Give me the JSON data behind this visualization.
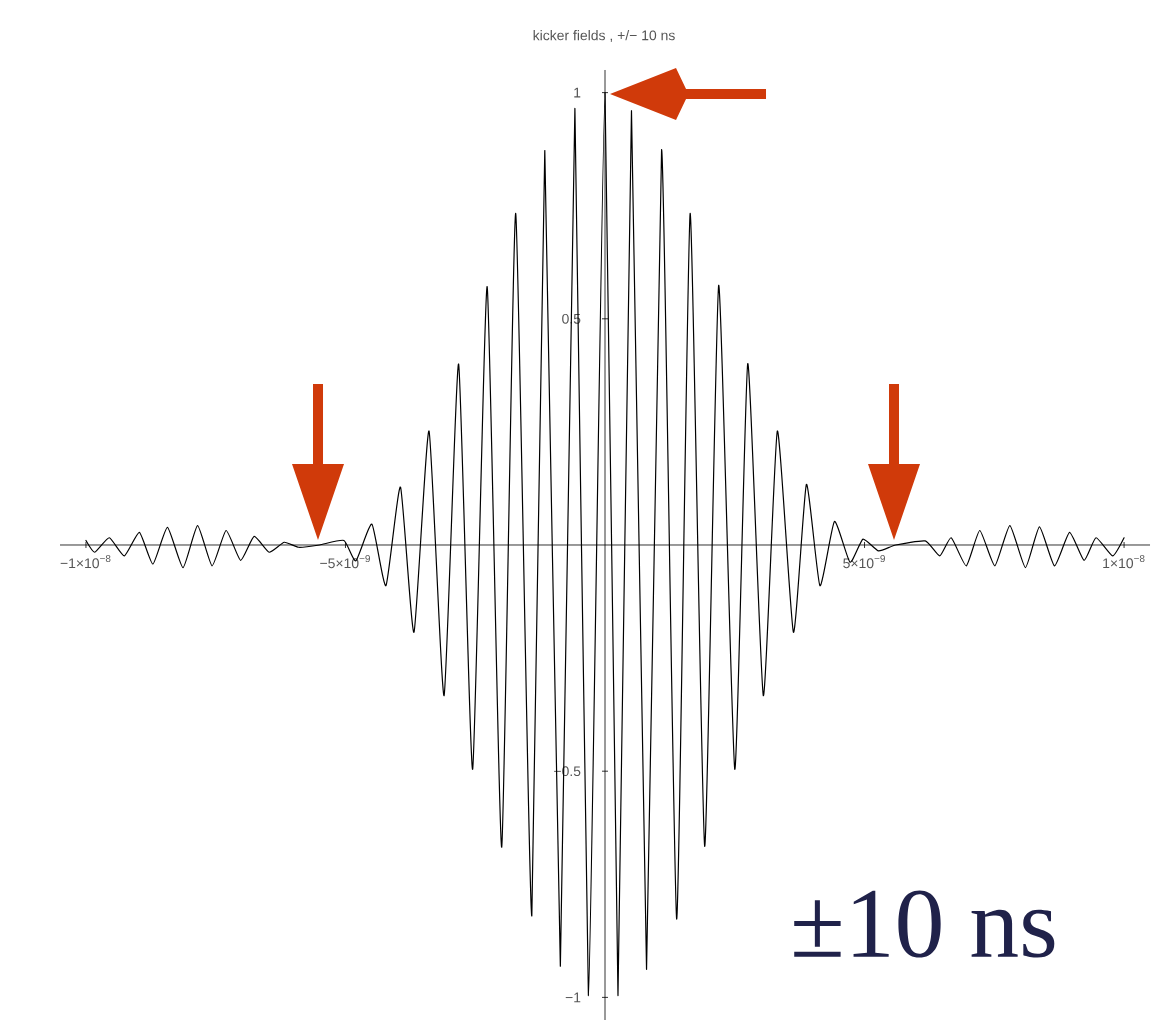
{
  "chart_data": {
    "type": "line",
    "title": "kicker fields , +/− 10 ns",
    "x": [
      -1e-08,
      -9.83e-09,
      -9.55e-09,
      -9.26e-09,
      -8.97e-09,
      -8.71e-09,
      -8.43e-09,
      -8.13e-09,
      -7.85e-09,
      -7.57e-09,
      -7.3e-09,
      -7.02e-09,
      -6.76e-09,
      -6.47e-09,
      -6.18e-09,
      -5.9e-09,
      -5.5e-09,
      -5.03e-09,
      -4.8e-09,
      -4.49e-09,
      -4.22e-09,
      -3.94e-09,
      -3.68e-09,
      -3.39e-09,
      -3.1e-09,
      -2.82e-09,
      -2.55e-09,
      -2.27e-09,
      -1.99e-09,
      -1.72e-09,
      -1.41e-09,
      -1.16e-09,
      -8.6e-10,
      -5.8e-10,
      -3.2e-10,
      0,
      2.5e-10,
      5.1e-10,
      8e-10,
      1.09e-09,
      1.38e-09,
      1.64e-09,
      1.92e-09,
      2.19e-09,
      2.5e-09,
      2.75e-09,
      3.05e-09,
      3.32e-09,
      3.63e-09,
      3.88e-09,
      4.14e-09,
      4.42e-09,
      4.72e-09,
      4.97e-09,
      5.27e-09,
      5.6e-09,
      6.17e-09,
      6.45e-09,
      6.67e-09,
      6.96e-09,
      7.22e-09,
      7.51e-09,
      7.8e-09,
      8.1e-09,
      8.37e-09,
      8.66e-09,
      8.95e-09,
      9.23e-09,
      9.46e-09,
      9.78e-09,
      1e-08
    ],
    "values": [
      0.01,
      -0.016,
      0.016,
      -0.024,
      0.028,
      -0.042,
      0.039,
      -0.05,
      0.043,
      -0.046,
      0.032,
      -0.034,
      0.019,
      -0.016,
      0.006,
      -0.005,
      0.0,
      0.01,
      -0.035,
      0.046,
      -0.09,
      0.128,
      -0.193,
      0.252,
      -0.333,
      0.4,
      -0.496,
      0.571,
      -0.668,
      0.733,
      -0.82,
      0.872,
      -0.931,
      0.965,
      -0.996,
      1.0,
      -0.996,
      0.96,
      -0.938,
      0.874,
      -0.827,
      0.733,
      -0.666,
      0.574,
      -0.496,
      0.401,
      -0.333,
      0.252,
      -0.193,
      0.134,
      -0.09,
      0.052,
      -0.038,
      0.013,
      -0.013,
      0.0,
      0.009,
      -0.024,
      0.016,
      -0.046,
      0.032,
      -0.046,
      0.043,
      -0.05,
      0.04,
      -0.046,
      0.028,
      -0.034,
      0.016,
      -0.024,
      0.016
    ],
    "color": "#000000",
    "xlim": [
      -1.05e-08,
      1.05e-08
    ],
    "ylim": [
      -1.05,
      1.05
    ],
    "xticks": [
      {
        "value": -1e-08,
        "label": "−1×10$^{−8}$"
      },
      {
        "value": -5e-09,
        "label": "−5×10$^{−9}$"
      },
      {
        "value": 5e-09,
        "label": "5×10$^{−9}$"
      },
      {
        "value": 1e-08,
        "label": "1×10$^{−8}$"
      }
    ],
    "yticks": [
      {
        "value": -1,
        "label": "−1"
      },
      {
        "value": -0.5,
        "label": "−0.5"
      },
      0.5,
      1
    ],
    "annotations": [
      "±10 ns"
    ]
  }
}
